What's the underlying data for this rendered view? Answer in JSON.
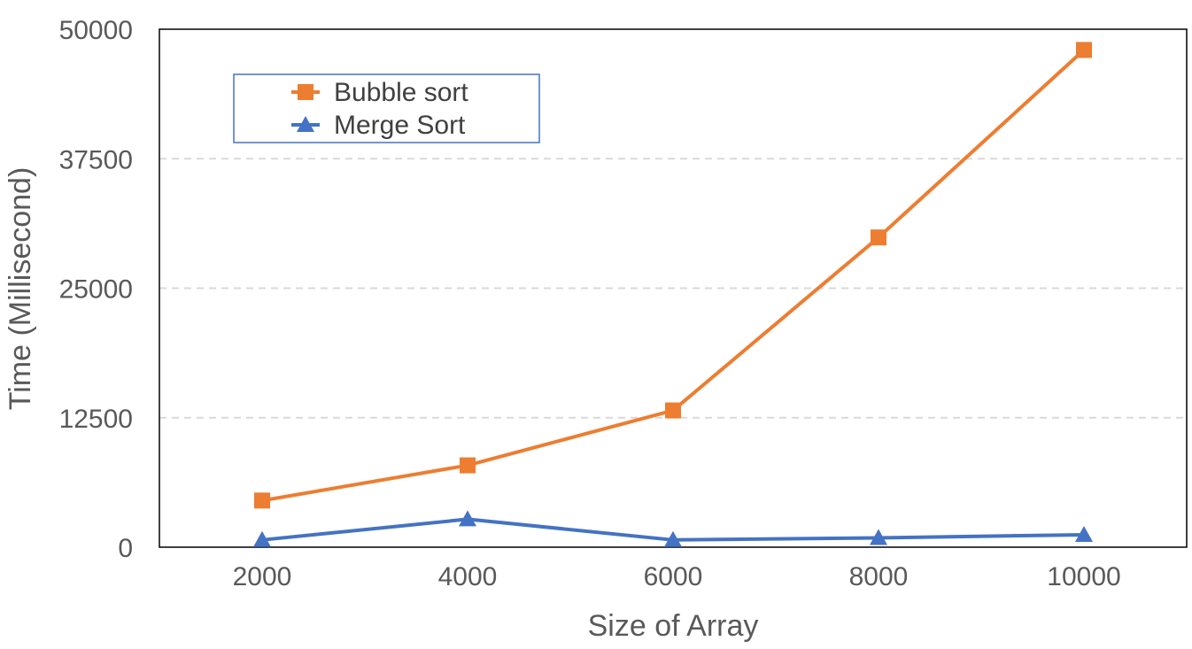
{
  "chart_data": {
    "type": "line",
    "x": [
      2000,
      4000,
      6000,
      8000,
      10000
    ],
    "series": [
      {
        "name": "Bubble sort",
        "values": [
          4500,
          7900,
          13200,
          29900,
          48000
        ],
        "color": "#ED7D31",
        "marker": "square"
      },
      {
        "name": "Merge Sort",
        "values": [
          700,
          2700,
          700,
          900,
          1200
        ],
        "color": "#4472C4",
        "marker": "triangle"
      }
    ],
    "xlabel": "Size of Array",
    "ylabel": "Time (Millisecond)",
    "ylim": [
      0,
      50000
    ],
    "yticks": [
      "0",
      "12500",
      "25000",
      "37500",
      "50000"
    ],
    "xticks": [
      "2000",
      "4000",
      "6000",
      "8000",
      "10000"
    ],
    "grid": "horizontal-dashed",
    "legend_position": "top-left"
  }
}
